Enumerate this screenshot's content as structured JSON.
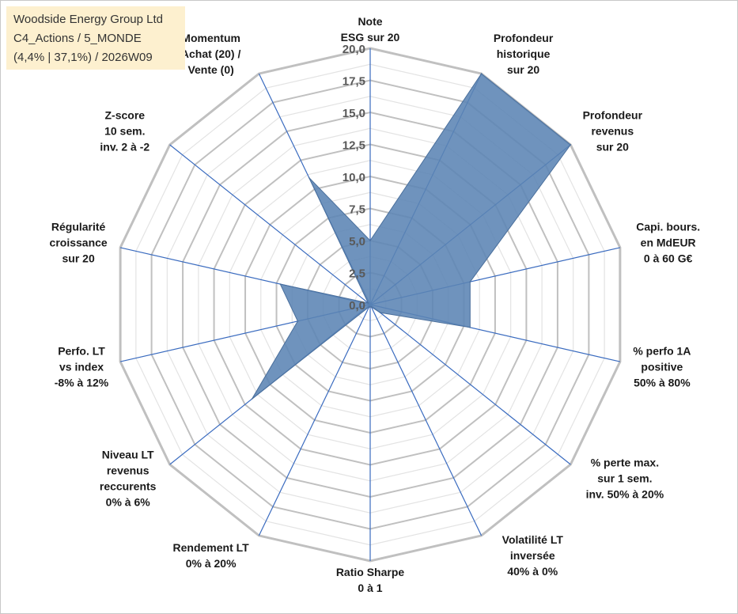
{
  "info": {
    "line1": "Woodside Energy Group Ltd",
    "line2": "C4_Actions / 5_MONDE",
    "line3": "(4,4% | 37,1%) / 2026W09"
  },
  "chart_data": {
    "type": "radar",
    "range": [
      0,
      20
    ],
    "ticks": [
      "0,0",
      "2,5",
      "5,0",
      "7,5",
      "10,0",
      "12,5",
      "15,0",
      "17,5",
      "20,0"
    ],
    "grid": true,
    "legend": "none",
    "colors": {
      "fill": "#5b84b4",
      "stroke": "#4a6f9c",
      "axis": "#3a6bbf",
      "grid_major": "#c0c0c0",
      "grid_minor": "#e3e3e3"
    },
    "axes": [
      {
        "label": [
          "Note",
          "ESG sur 20"
        ],
        "value": 5.0
      },
      {
        "label": [
          "Profondeur",
          "historique",
          "sur 20"
        ],
        "value": 20.0
      },
      {
        "label": [
          "Profondeur",
          "revenus",
          "sur 20"
        ],
        "value": 20.0
      },
      {
        "label": [
          "Capi. bours.",
          "en MdEUR",
          "0 à 60 G€"
        ],
        "value": 8.0
      },
      {
        "label": [
          "% perfo 1A",
          "positive",
          "50% à 80%"
        ],
        "value": 8.0
      },
      {
        "label": [
          "% perte max.",
          "sur 1 sem.",
          "inv. 50% à 20%"
        ],
        "value": 1.0
      },
      {
        "label": [
          "Volatilité LT",
          "inversée",
          "40% à 0%"
        ],
        "value": 0.2
      },
      {
        "label": [
          "Ratio Sharpe",
          "0 à 1"
        ],
        "value": 0.2
      },
      {
        "label": [
          "Rendement LT",
          "0% à 20%"
        ],
        "value": 0.2
      },
      {
        "label": [
          "Niveau LT",
          "revenus",
          "reccurents",
          "0% à 6%"
        ],
        "value": 11.8
      },
      {
        "label": [
          "Perfo. LT",
          "vs index",
          "-8% à 12%"
        ],
        "value": 5.8
      },
      {
        "label": [
          "Régularité",
          "croissance",
          "sur 20"
        ],
        "value": 7.2
      },
      {
        "label": [
          "Z-score",
          "10 sem.",
          "inv. 2 à -2"
        ],
        "value": 0.2
      },
      {
        "label": [
          "Momentum",
          "Achat (20) /",
          "Vente (0)"
        ],
        "value": 11.0
      }
    ]
  }
}
